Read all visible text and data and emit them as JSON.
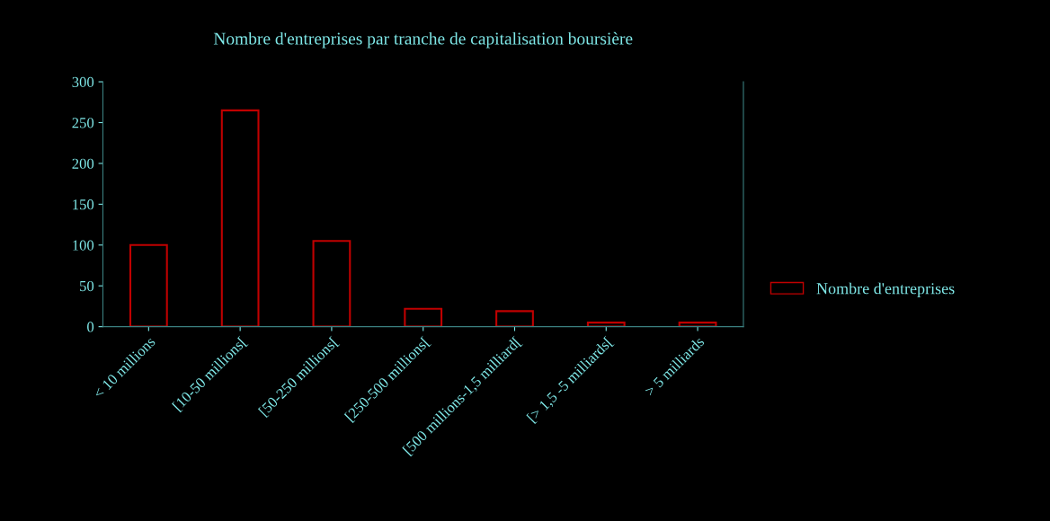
{
  "chart_data": {
    "type": "bar",
    "title": "Nombre d'entreprises par tranche de capitalisation boursière",
    "categories": [
      "< 10 millions",
      "[10-50 millions[",
      "[50-250 millions[",
      "[250-500 millions[",
      "[500 millions-1,5 milliard[",
      "[> 1,5 -5 milliards[",
      "> 5 milliards"
    ],
    "series": [
      {
        "name": "Nombre d'entreprises",
        "color": "#c00000",
        "values": [
          100,
          265,
          105,
          22,
          19,
          5,
          5
        ]
      }
    ],
    "ylim": [
      0,
      300
    ],
    "yticks": [
      0,
      50,
      100,
      150,
      200,
      250,
      300
    ],
    "grid": false,
    "legend": "right"
  }
}
